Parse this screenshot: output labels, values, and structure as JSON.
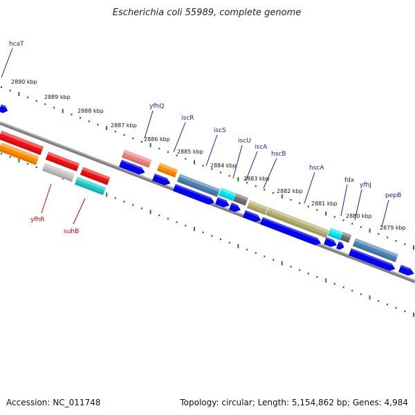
{
  "title": "Escherichia coli 55989, complete genome",
  "footer": {
    "accession": "Accession: NC_011748",
    "topology": "Topology: circular; Length: 5,154,862 bp; Genes: 4,984"
  },
  "colors": {
    "label_forward": "#1a1aaa",
    "label_reverse": "#cc0000",
    "backbone": "#808080",
    "tick": "#1e7e1e",
    "blue_cds": "#0000ee"
  },
  "kbp_labels": [
    "2890 kbp",
    "2889 kbp",
    "2888 kbp",
    "2887 kbp",
    "2886 kbp",
    "2885 kbp",
    "2884 kbp",
    "2883 kbp",
    "2882 kbp",
    "2881 kbp",
    "2880 kbp",
    "2879 kbp"
  ],
  "genes": [
    {
      "name": "hcaT",
      "strand": "forward"
    },
    {
      "name": "yfhQ",
      "strand": "forward"
    },
    {
      "name": "iscR",
      "strand": "forward"
    },
    {
      "name": "iscS",
      "strand": "forward"
    },
    {
      "name": "iscU",
      "strand": "forward"
    },
    {
      "name": "iscA",
      "strand": "forward"
    },
    {
      "name": "hscB",
      "strand": "forward"
    },
    {
      "name": "hscA",
      "strand": "forward"
    },
    {
      "name": "fdx",
      "strand": "forward"
    },
    {
      "name": "yfhJ",
      "strand": "forward"
    },
    {
      "name": "pepB",
      "strand": "forward"
    },
    {
      "name": "yfhR",
      "strand": "reverse"
    },
    {
      "name": "suhB",
      "strand": "reverse"
    }
  ]
}
